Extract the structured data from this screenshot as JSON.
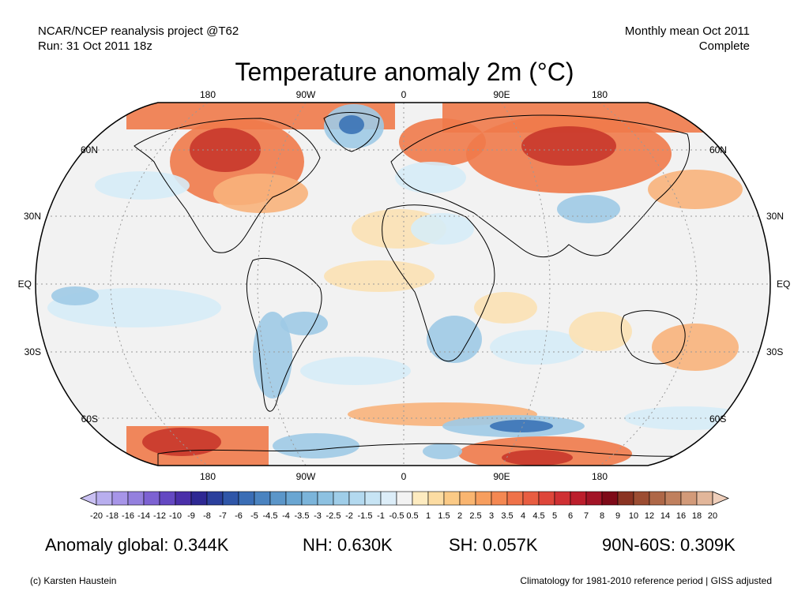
{
  "header": {
    "left_line1": "NCAR/NCEP reanalysis project @T62",
    "left_line2": "Run: 31 Oct 2011 18z",
    "right_line1": "Monthly mean Oct 2011",
    "right_line2": "Complete"
  },
  "title": "Temperature anomaly 2m (°C)",
  "map": {
    "projection": "robinson",
    "lon_labels_top": [
      "180",
      "90W",
      "0",
      "90E",
      "180"
    ],
    "lon_labels_bottom": [
      "180",
      "90W",
      "0",
      "90E",
      "180"
    ],
    "lat_labels": [
      "60N",
      "30N",
      "EQ",
      "30S",
      "60S"
    ],
    "lat_labels_right": [
      "60N",
      "30N",
      "EQ",
      "30S",
      "60S"
    ],
    "ocean_color": "#f2f2f2",
    "colors": {
      "warm_strong": "#c8372b",
      "warm": "#f07a4a",
      "warm_light": "#f8b27b",
      "warm_faint": "#fbe1b4",
      "cool_faint": "#d6ecf7",
      "cool": "#9ecae5",
      "cool_strong": "#3b73b6"
    }
  },
  "colorbar": {
    "labels": [
      "-20",
      "-18",
      "-16",
      "-14",
      "-12",
      "-10",
      "-9",
      "-8",
      "-7",
      "-6",
      "-5",
      "-4.5",
      "-4",
      "-3.5",
      "-3",
      "-2.5",
      "-2",
      "-1.5",
      "-1",
      "-0.5",
      "0.5",
      "1",
      "1.5",
      "2",
      "2.5",
      "3",
      "3.5",
      "4",
      "4.5",
      "5",
      "6",
      "7",
      "8",
      "9",
      "10",
      "12",
      "14",
      "16",
      "18",
      "20"
    ],
    "colors": [
      "#c9c0f2",
      "#b8aeee",
      "#a795e8",
      "#9480de",
      "#7d62d2",
      "#6448c2",
      "#4a2fa9",
      "#2e2893",
      "#2b3f9c",
      "#2f56a8",
      "#3a6db5",
      "#4a83c0",
      "#5b96c9",
      "#6aa6d2",
      "#7bb4da",
      "#8dc1e1",
      "#9fcde8",
      "#b3d9ef",
      "#c7e4f4",
      "#dcedf8",
      "#f2f2f2",
      "#fdebc0",
      "#fcdca2",
      "#fbca86",
      "#f9b570",
      "#f79e5e",
      "#f48852",
      "#ef7249",
      "#e85d41",
      "#de463a",
      "#cf3033",
      "#bc1e2c",
      "#a21426",
      "#7e0a18",
      "#8a3322",
      "#9c4d32",
      "#ae6747",
      "#c0805e",
      "#d29a79",
      "#e2b69a",
      "#efcfbb"
    ]
  },
  "stats": {
    "global": "Anomaly global: 0.344K",
    "nh": "NH: 0.630K",
    "sh": "SH: 0.057K",
    "band": "90N-60S: 0.309K"
  },
  "footer": {
    "credit": "(c) Karsten Haustein",
    "note": "Climatology for 1981-2010 reference period | GISS adjusted"
  }
}
